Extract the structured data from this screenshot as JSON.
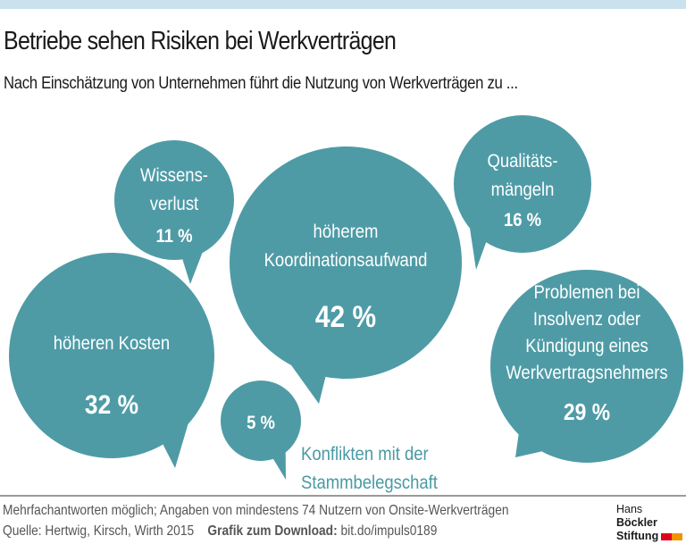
{
  "header": {
    "title": "Betriebe sehen Risiken bei Werkverträgen",
    "subtitle": "Nach Einschätzung von Unternehmen führt die Nutzung von Werkverträgen zu ..."
  },
  "colors": {
    "bubble": "#4e9ba6",
    "topbar": "#c9e2ee",
    "external_label": "#4a9aa4"
  },
  "chart_data": {
    "type": "bubble",
    "title": "Betriebe sehen Risiken bei Werkverträgen",
    "unit": "%",
    "items": [
      {
        "label_lines": [
          "höherem",
          "Koordinationsaufwand"
        ],
        "value": 42,
        "value_label": "42 %"
      },
      {
        "label_lines": [
          "höheren Kosten"
        ],
        "value": 32,
        "value_label": "32 %"
      },
      {
        "label_lines": [
          "Problemen bei",
          "Insolvenz oder",
          "Kündigung eines",
          "Werkvertragsnehmers"
        ],
        "value": 29,
        "value_label": "29 %"
      },
      {
        "label_lines": [
          "Qualitäts-",
          "mängeln"
        ],
        "value": 16,
        "value_label": "16 %"
      },
      {
        "label_lines": [
          "Wissens-",
          "verlust"
        ],
        "value": 11,
        "value_label": "11 %"
      },
      {
        "label_lines": [
          "Konflikten mit der",
          "Stammbelegschaft"
        ],
        "value": 5,
        "value_label": "5 %"
      }
    ]
  },
  "footer": {
    "note": "Mehrfachantworten möglich; Angaben von mindestens 74 Nutzern von Onsite-Werkverträgen",
    "source": "Quelle: Hertwig, Kirsch, Wirth 2015",
    "download_label": "Grafik zum Download:",
    "download_link": "bit.do/impuls0189"
  },
  "logo": {
    "line1_light": "Hans",
    "line1_bold": "Böckler",
    "line2": "Stiftung"
  }
}
